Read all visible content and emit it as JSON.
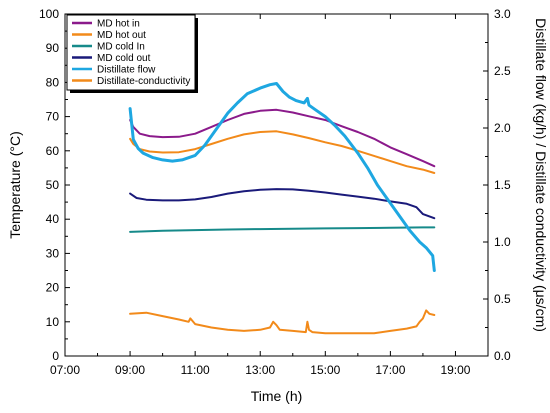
{
  "chart_data": {
    "type": "line",
    "title": "",
    "xlabel": "Time (h)",
    "ylabel": "Temperature (°C)",
    "y2label": "Distillate flow (kg/h) / Distillate conductivity (μs/cm)",
    "xlim": [
      7,
      20
    ],
    "ylim": [
      0,
      100
    ],
    "y2lim": [
      0,
      3.0
    ],
    "x_ticks": [
      7,
      9,
      11,
      13,
      15,
      17,
      19
    ],
    "x_tick_labels": [
      "07:00",
      "09:00",
      "11:00",
      "13:00",
      "15:00",
      "17:00",
      "19:00"
    ],
    "y_ticks": [
      0,
      10,
      20,
      30,
      40,
      50,
      60,
      70,
      80,
      90,
      100
    ],
    "y_tick_labels": [
      "0",
      "10",
      "20",
      "30",
      "40",
      "50",
      "60",
      "70",
      "80",
      "90",
      "100"
    ],
    "y2_ticks": [
      0,
      0.5,
      1.0,
      1.5,
      2.0,
      2.5,
      3.0
    ],
    "y2_tick_labels": [
      "0.0",
      "0.5",
      "1.0",
      "1.5",
      "2.0",
      "2.5",
      "3.0"
    ],
    "grid": false,
    "legend_position": "top-left",
    "series": [
      {
        "name": "MD hot in",
        "color": "#8b1a8b",
        "axis": "left",
        "x": [
          9.0,
          9.1,
          9.3,
          9.6,
          10.0,
          10.5,
          11.0,
          11.5,
          12.0,
          12.5,
          13.0,
          13.5,
          14.0,
          14.5,
          15.0,
          15.5,
          16.0,
          16.5,
          17.0,
          17.5,
          18.0,
          18.35
        ],
        "y": [
          69,
          67,
          65,
          64.3,
          64.0,
          64.1,
          65,
          67,
          69,
          70.8,
          71.7,
          72.0,
          71.2,
          70.1,
          69,
          67.2,
          65.5,
          63.5,
          61,
          59,
          57,
          55.5
        ]
      },
      {
        "name": "MD hot out",
        "color": "#f28a1a",
        "axis": "left",
        "x": [
          9.0,
          9.1,
          9.3,
          9.6,
          10.0,
          10.5,
          11.0,
          11.5,
          12.0,
          12.5,
          13.0,
          13.5,
          14.0,
          14.5,
          15.0,
          15.5,
          16.0,
          16.5,
          17.0,
          17.5,
          18.0,
          18.35
        ],
        "y": [
          63.5,
          62,
          60.5,
          59.8,
          59.5,
          59.6,
          60.5,
          62,
          63.5,
          64.8,
          65.5,
          65.7,
          64.8,
          63.7,
          62.5,
          61.4,
          60,
          58.5,
          57,
          55.5,
          54.5,
          53.5
        ]
      },
      {
        "name": "MD cold In",
        "color": "#168a8a",
        "axis": "left",
        "x": [
          9.0,
          10.0,
          11.0,
          12.0,
          13.0,
          14.0,
          15.0,
          16.0,
          17.0,
          18.0,
          18.35
        ],
        "y": [
          36.3,
          36.6,
          36.8,
          37.0,
          37.1,
          37.2,
          37.3,
          37.4,
          37.5,
          37.6,
          37.6
        ]
      },
      {
        "name": "MD cold out",
        "color": "#1a1a7a",
        "axis": "left",
        "x": [
          9.0,
          9.2,
          9.5,
          10.0,
          10.5,
          11.0,
          11.5,
          12.0,
          12.5,
          13.0,
          13.5,
          14.0,
          14.5,
          15.0,
          15.5,
          16.0,
          16.5,
          17.0,
          17.5,
          17.8,
          18.0,
          18.35
        ],
        "y": [
          47.5,
          46.2,
          45.7,
          45.5,
          45.5,
          45.8,
          46.5,
          47.5,
          48.2,
          48.6,
          48.8,
          48.7,
          48.3,
          47.8,
          47.2,
          46.6,
          46.0,
          45.2,
          44.5,
          43.5,
          41.5,
          40.3
        ]
      },
      {
        "name": "Distillate flow",
        "color": "#1ea7e1",
        "axis": "right",
        "x": [
          9.0,
          9.1,
          9.25,
          9.4,
          9.7,
          10.0,
          10.3,
          10.6,
          11.0,
          11.3,
          11.6,
          12.0,
          12.3,
          12.6,
          13.0,
          13.3,
          13.5,
          13.7,
          13.9,
          14.1,
          14.35,
          14.45,
          14.5,
          14.7,
          15.0,
          15.3,
          15.6,
          16.0,
          16.3,
          16.6,
          17.0,
          17.3,
          17.6,
          17.9,
          18.1,
          18.3,
          18.35
        ],
        "y": [
          2.17,
          1.9,
          1.82,
          1.78,
          1.74,
          1.72,
          1.71,
          1.72,
          1.76,
          1.85,
          1.97,
          2.13,
          2.22,
          2.3,
          2.35,
          2.38,
          2.39,
          2.32,
          2.27,
          2.24,
          2.22,
          2.26,
          2.2,
          2.16,
          2.1,
          2.02,
          1.93,
          1.78,
          1.65,
          1.5,
          1.34,
          1.22,
          1.1,
          1.0,
          0.95,
          0.88,
          0.75
        ]
      },
      {
        "name": "Distillate-conductivity",
        "color": "#f28a1a",
        "axis": "right",
        "x": [
          9.0,
          9.5,
          10.0,
          10.5,
          10.8,
          10.85,
          11.0,
          11.5,
          12.0,
          12.5,
          13.0,
          13.3,
          13.4,
          13.5,
          13.6,
          14.0,
          14.4,
          14.45,
          14.5,
          14.6,
          15.0,
          15.5,
          16.0,
          16.5,
          17.0,
          17.5,
          17.8,
          17.9,
          18.0,
          18.1,
          18.2,
          18.35
        ],
        "y": [
          0.37,
          0.38,
          0.35,
          0.32,
          0.3,
          0.33,
          0.28,
          0.25,
          0.23,
          0.22,
          0.23,
          0.25,
          0.3,
          0.27,
          0.23,
          0.22,
          0.21,
          0.3,
          0.23,
          0.21,
          0.2,
          0.2,
          0.2,
          0.2,
          0.22,
          0.24,
          0.26,
          0.3,
          0.33,
          0.4,
          0.37,
          0.36
        ]
      }
    ]
  }
}
